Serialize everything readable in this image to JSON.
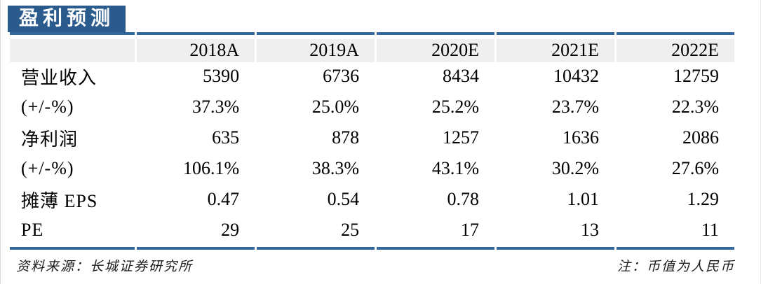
{
  "title": "盈利预测",
  "colors": {
    "title_bg": "#2B5A8C",
    "rule": "#34669E",
    "header_bg": "#EFEFEF",
    "text": "#000000",
    "footer_text": "#1A1A1A",
    "page_edge": "#DCDCDC"
  },
  "table": {
    "columns": [
      "",
      "2018A",
      "2019A",
      "2020E",
      "2021E",
      "2022E"
    ],
    "rows": [
      {
        "label": "营业收入",
        "values": [
          "5390",
          "6736",
          "8434",
          "10432",
          "12759"
        ]
      },
      {
        "label": "(+/-%)",
        "values": [
          "37.3%",
          "25.0%",
          "25.2%",
          "23.7%",
          "22.3%"
        ]
      },
      {
        "label": "净利润",
        "values": [
          "635",
          "878",
          "1257",
          "1636",
          "2086"
        ]
      },
      {
        "label": "(+/-%)",
        "values": [
          "106.1%",
          "38.3%",
          "43.1%",
          "30.2%",
          "27.6%"
        ]
      },
      {
        "label": "摊薄 EPS",
        "values": [
          "0.47",
          "0.54",
          "0.78",
          "1.01",
          "1.29"
        ]
      },
      {
        "label": "PE",
        "values": [
          "29",
          "25",
          "17",
          "13",
          "11"
        ]
      }
    ]
  },
  "footer": {
    "source": "资料来源：长城证券研究所",
    "note": "注：币值为人民币"
  }
}
